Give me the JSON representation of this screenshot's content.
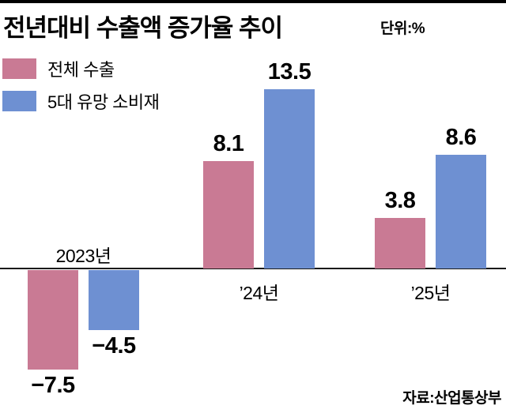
{
  "header": {
    "title": "전년대비 수출액 증가율 추이",
    "unit_label": "단위:%"
  },
  "legend": [
    {
      "label": "전체 수출",
      "color": "#c97a94"
    },
    {
      "label": "5대 유망 소비재",
      "color": "#6e90d2"
    }
  ],
  "source": "자료:산업통상부",
  "chart_data": {
    "type": "bar",
    "categories": [
      "2023년",
      "’24년",
      "’25년"
    ],
    "series": [
      {
        "name": "전체 수출",
        "color": "#c97a94",
        "values": [
          -7.5,
          8.1,
          3.8
        ]
      },
      {
        "name": "5대 유망 소비재",
        "color": "#6e90d2",
        "values": [
          -4.5,
          13.5,
          8.6
        ]
      }
    ],
    "value_labels": [
      [
        "−7.5",
        "8.1",
        "3.8"
      ],
      [
        "−4.5",
        "13.5",
        "8.6"
      ]
    ],
    "ylabel": "%",
    "baseline": 0,
    "legend_position": "top-left",
    "grid": false
  }
}
